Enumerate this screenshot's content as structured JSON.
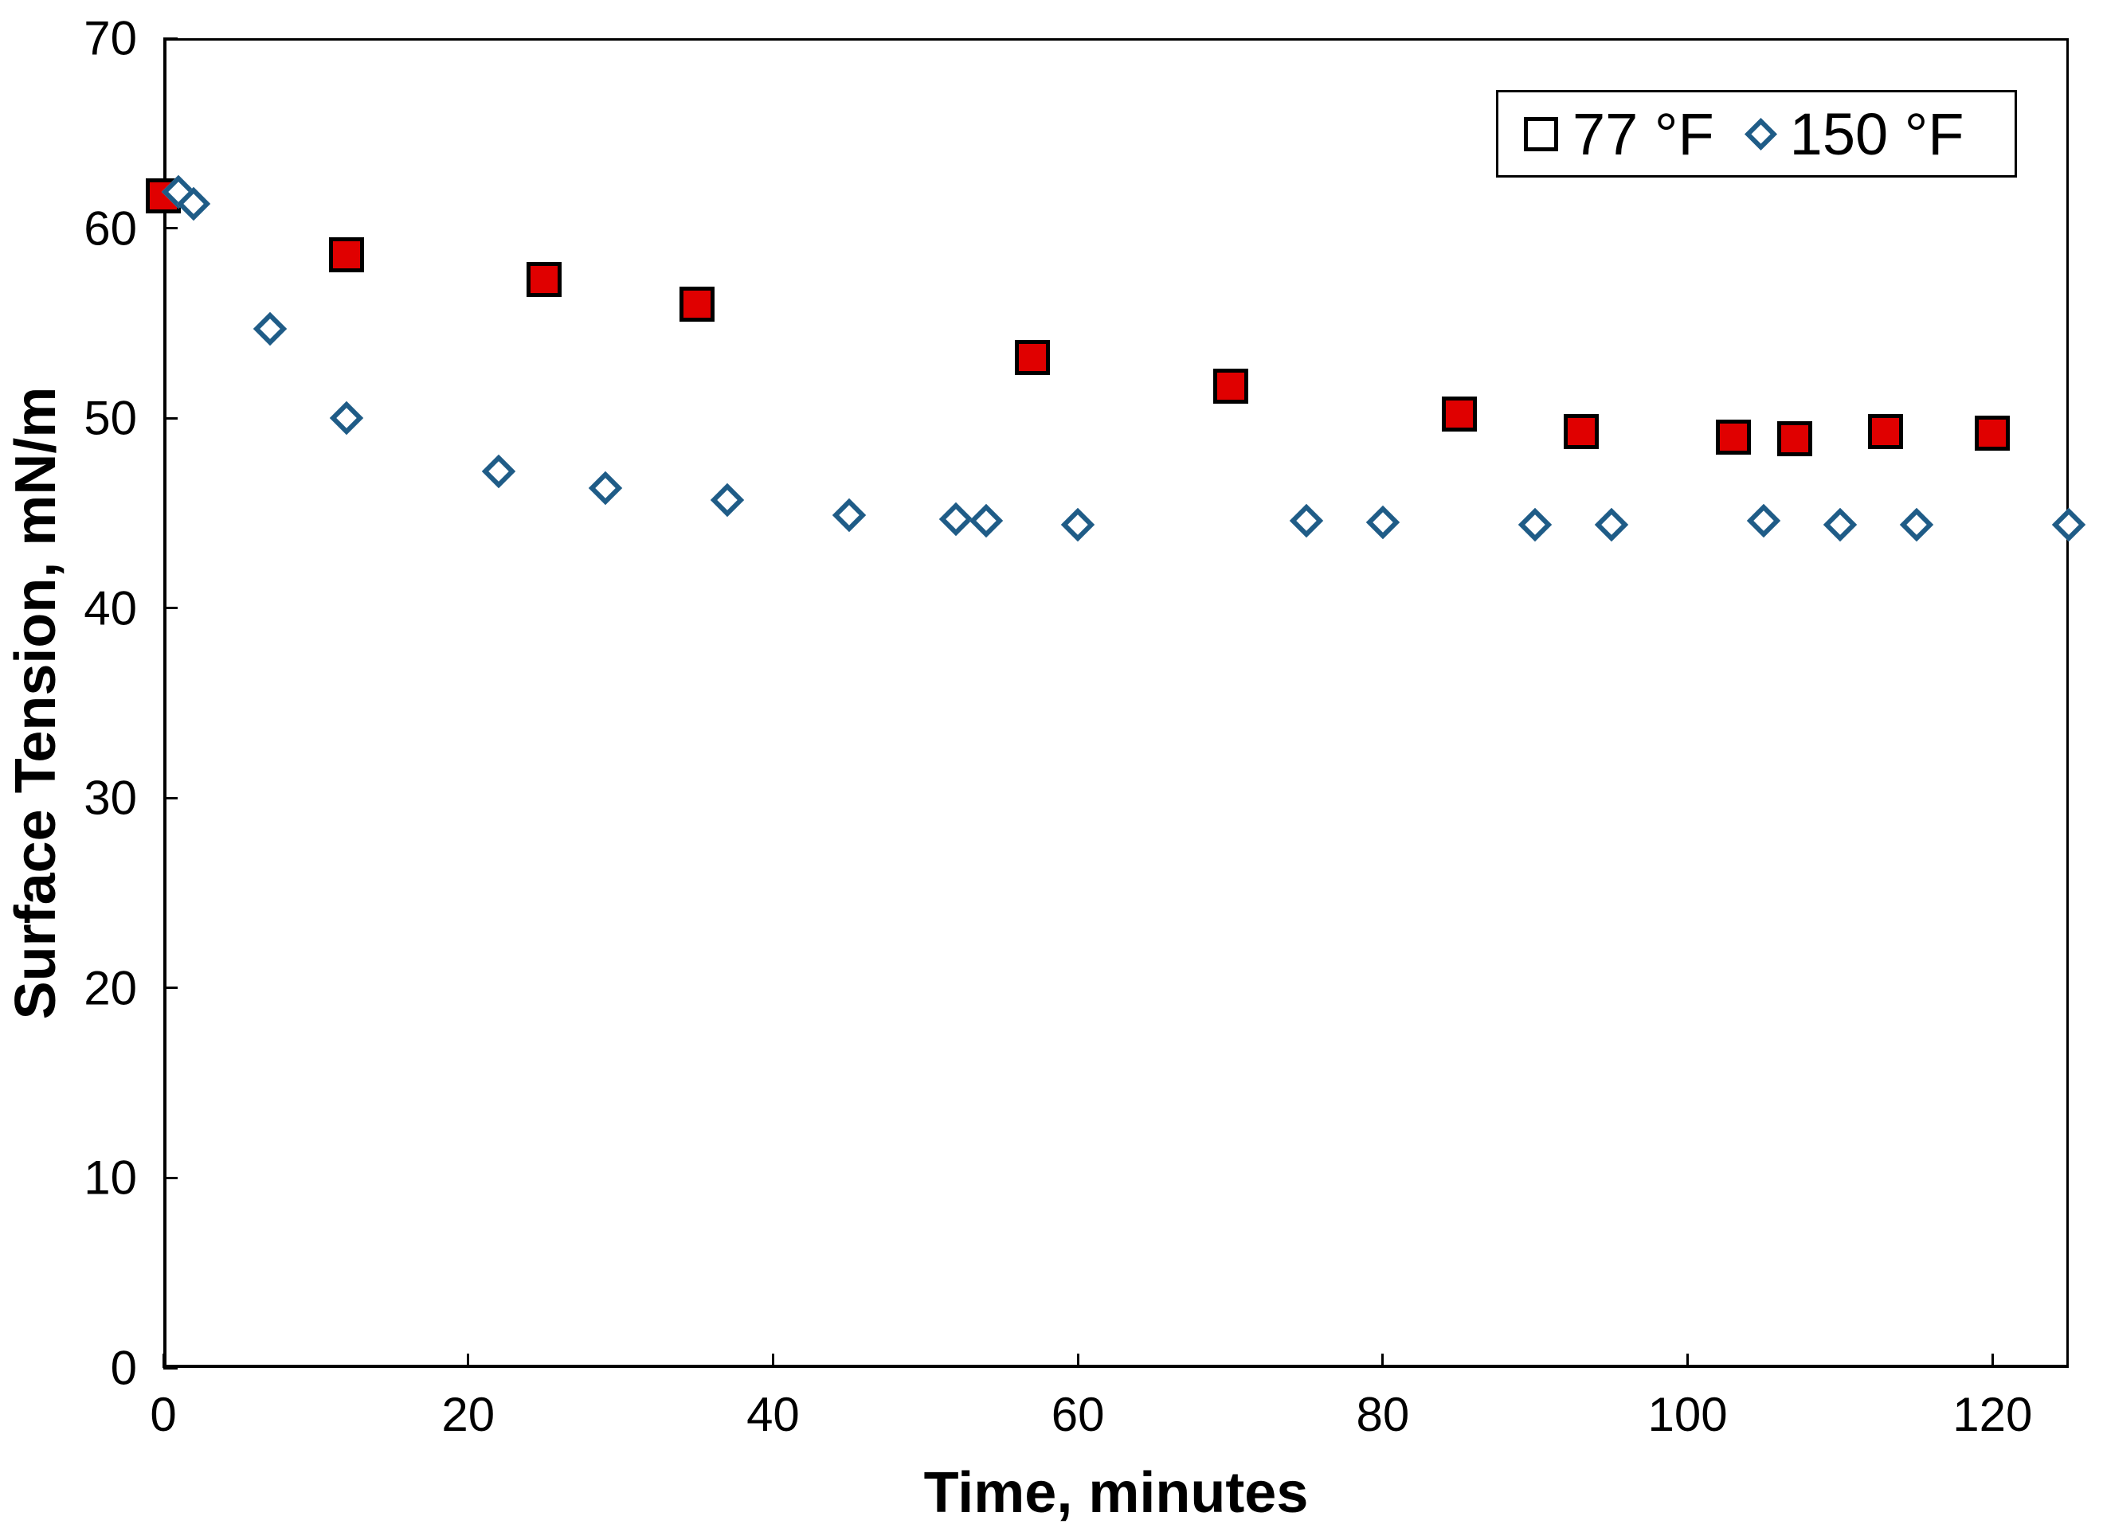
{
  "chart_data": {
    "type": "scatter",
    "title": "",
    "xlabel": "Time, minutes",
    "ylabel": "Surface Tension, mN/m",
    "xlim": [
      0,
      125
    ],
    "ylim": [
      0,
      70
    ],
    "x_ticks": [
      0,
      20,
      40,
      60,
      80,
      100,
      120
    ],
    "y_ticks": [
      0,
      10,
      20,
      30,
      40,
      50,
      60,
      70
    ],
    "grid": false,
    "legend_position": "top-right-inside",
    "colors": {
      "series_77f_fill": "#e00000",
      "series_77f_edge": "#000000",
      "series_150f_stroke": "#1f5c87",
      "axis": "#000000",
      "background": "#ffffff"
    },
    "series": [
      {
        "name": "77 °F",
        "marker": "filled-square",
        "points": [
          [
            0,
            61.7
          ],
          [
            12,
            58.6
          ],
          [
            25,
            57.3
          ],
          [
            35,
            56.0
          ],
          [
            57,
            53.2
          ],
          [
            70,
            51.7
          ],
          [
            85,
            50.2
          ],
          [
            93,
            49.3
          ],
          [
            103,
            49.0
          ],
          [
            107,
            48.9
          ],
          [
            113,
            49.3
          ],
          [
            120,
            49.2
          ]
        ]
      },
      {
        "name": "150 °F",
        "marker": "open-diamond",
        "points": [
          [
            1,
            61.9
          ],
          [
            2,
            61.3
          ],
          [
            7,
            54.7
          ],
          [
            12,
            50.0
          ],
          [
            22,
            47.2
          ],
          [
            29,
            46.3
          ],
          [
            37,
            45.7
          ],
          [
            45,
            44.9
          ],
          [
            52,
            44.7
          ],
          [
            54,
            44.6
          ],
          [
            60,
            44.4
          ],
          [
            75,
            44.6
          ],
          [
            80,
            44.5
          ],
          [
            90,
            44.4
          ],
          [
            95,
            44.4
          ],
          [
            105,
            44.6
          ],
          [
            110,
            44.4
          ],
          [
            115,
            44.4
          ],
          [
            125,
            44.4
          ]
        ]
      }
    ]
  }
}
